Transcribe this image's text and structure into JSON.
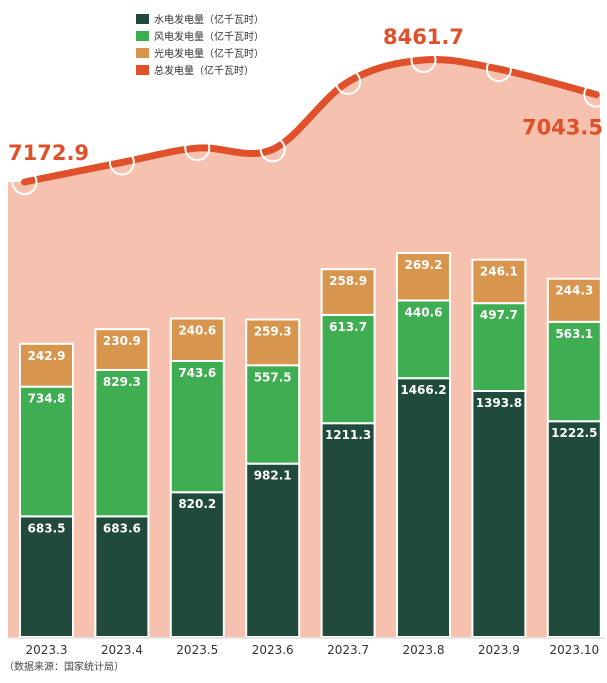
{
  "chart_data": {
    "type": "bar",
    "stacked": true,
    "categories": [
      "2023.3",
      "2023.4",
      "2023.5",
      "2023.6",
      "2023.7",
      "2023.8",
      "2023.9",
      "2023.10"
    ],
    "series": [
      {
        "name": "水电发电量（亿千瓦时）",
        "color": "#1f4a3c",
        "values": [
          683.5,
          683.6,
          820.2,
          982.1,
          1211.3,
          1466.2,
          1393.8,
          1222.5
        ]
      },
      {
        "name": "风电发电量（亿千瓦时）",
        "color": "#3fae52",
        "values": [
          734.8,
          829.3,
          743.6,
          557.5,
          613.7,
          440.6,
          497.7,
          563.1
        ]
      },
      {
        "name": "光电发电量（亿千瓦时）",
        "color": "#d8954d",
        "values": [
          242.9,
          230.9,
          240.6,
          259.3,
          258.9,
          269.2,
          246.1,
          244.3
        ]
      }
    ],
    "total_series": {
      "name": "总发电量（亿千瓦时）",
      "color": "#e0502a",
      "labeled": {
        "2023.3": "7172.9",
        "2023.8": "8461.7",
        "2023.10": "7043.5"
      }
    },
    "legend_position": "top-left",
    "grid": false
  },
  "source_note": "（数据来源：国家统计局）",
  "colors": {
    "background_fill": "#f6c1ae",
    "hydro": "#1f4a3c",
    "wind": "#3fae52",
    "solar": "#d8954d",
    "total_line": "#e0502a"
  }
}
